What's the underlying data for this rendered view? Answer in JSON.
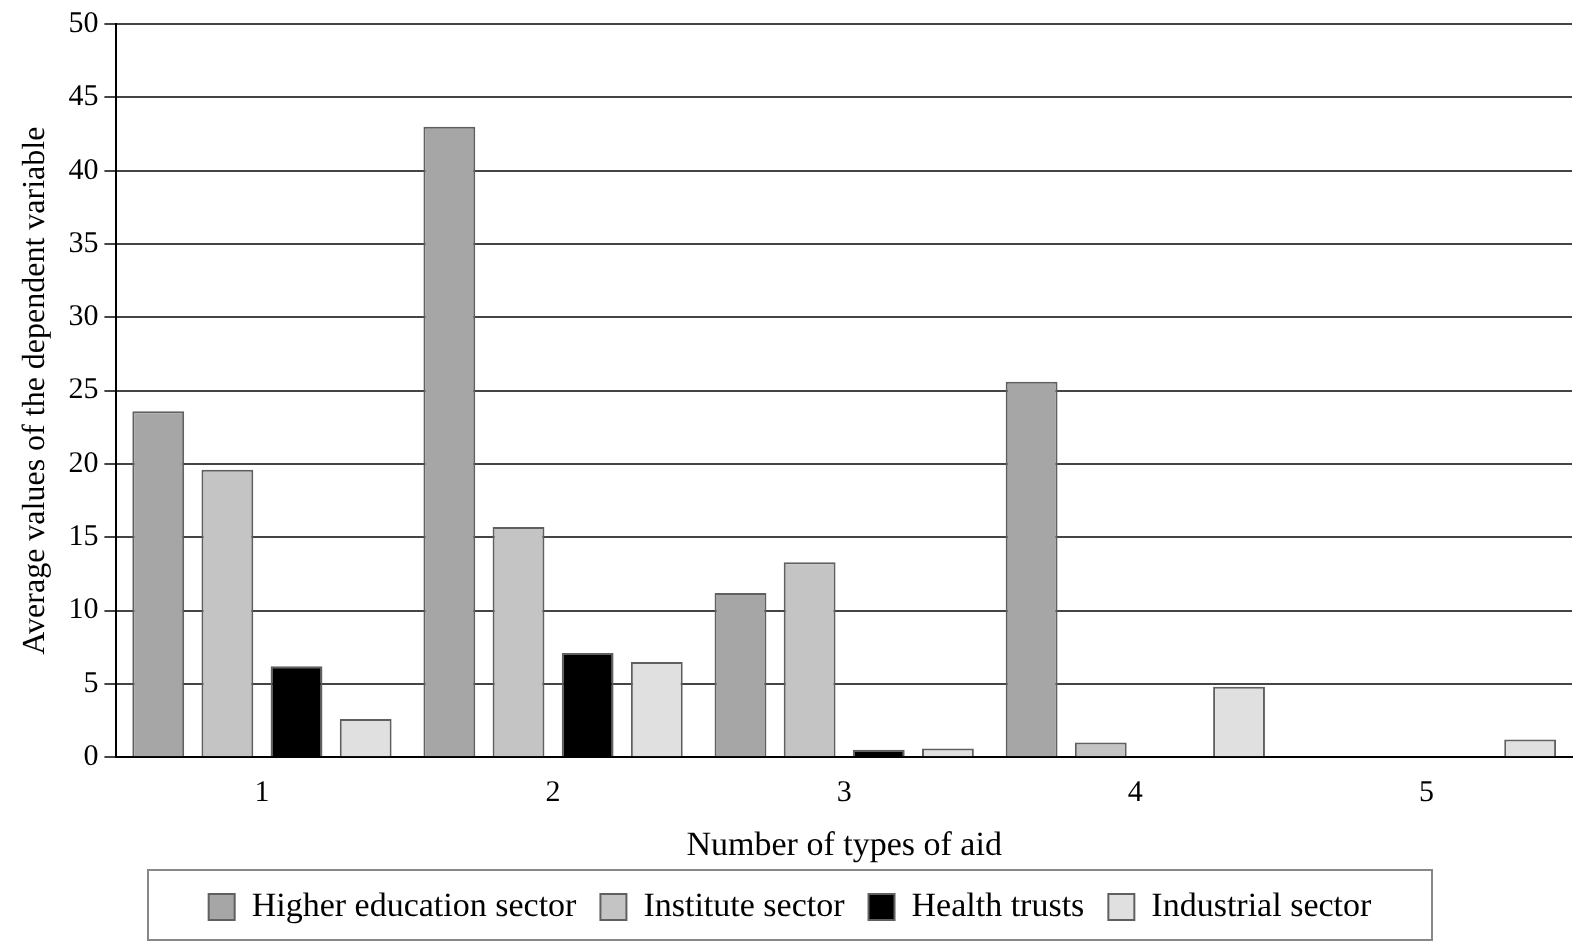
{
  "chart_data": {
    "type": "bar",
    "xlabel": "Number of types of aid",
    "ylabel": "Average values of the dependent variable",
    "categories": [
      "1",
      "2",
      "3",
      "4",
      "5"
    ],
    "series": [
      {
        "name": "Higher education sector",
        "color": "#a6a6a6",
        "values": [
          23.6,
          43,
          11.2,
          25.6,
          0
        ]
      },
      {
        "name": "Institute sector",
        "color": "#c4c4c4",
        "values": [
          19.6,
          15.7,
          13.3,
          1.0,
          0
        ]
      },
      {
        "name": "Health trusts",
        "color": "#000000",
        "values": [
          6.2,
          7.1,
          0.5,
          0,
          0
        ]
      },
      {
        "name": "Industrial sector",
        "color": "#e0e0e0",
        "values": [
          2.6,
          6.5,
          0.6,
          4.8,
          1.2
        ]
      }
    ],
    "ylim": [
      0,
      50
    ],
    "yticks": [
      0,
      5,
      10,
      15,
      20,
      25,
      30,
      35,
      40,
      45,
      50
    ],
    "grid": "y",
    "legend": "bottom"
  }
}
